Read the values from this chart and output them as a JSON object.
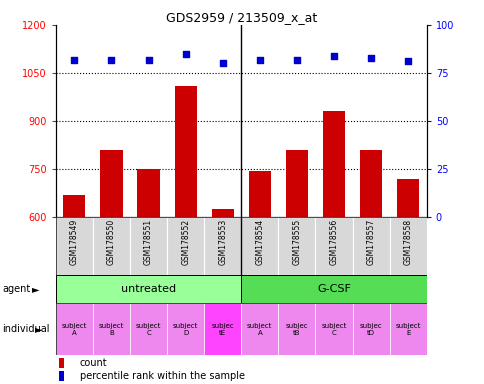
{
  "title": "GDS2959 / 213509_x_at",
  "samples": [
    "GSM178549",
    "GSM178550",
    "GSM178551",
    "GSM178552",
    "GSM178553",
    "GSM178554",
    "GSM178555",
    "GSM178556",
    "GSM178557",
    "GSM178558"
  ],
  "counts": [
    670,
    810,
    750,
    1010,
    625,
    745,
    810,
    930,
    810,
    720
  ],
  "percentile_ranks": [
    82,
    82,
    82,
    85,
    80,
    82,
    82,
    84,
    83,
    81
  ],
  "ylim_left": [
    600,
    1200
  ],
  "yticks_left": [
    600,
    750,
    900,
    1050,
    1200
  ],
  "ylim_right": [
    0,
    100
  ],
  "yticks_right": [
    0,
    25,
    50,
    75,
    100
  ],
  "bar_color": "#cc0000",
  "dot_color": "#0000cc",
  "agent_groups": [
    {
      "label": "untreated",
      "start": 0,
      "end": 5,
      "color": "#99ff99"
    },
    {
      "label": "G-CSF",
      "start": 5,
      "end": 10,
      "color": "#55dd55"
    }
  ],
  "individuals": [
    "subject\nA",
    "subject\nB",
    "subject\nC",
    "subject\nD",
    "subjec\ntE",
    "subject\nA",
    "subjec\ntB",
    "subject\nC",
    "subjec\ntD",
    "subject\nE"
  ],
  "individual_colors": [
    "#ee88ee",
    "#ee88ee",
    "#ee88ee",
    "#ee88ee",
    "#ff44ff",
    "#ee88ee",
    "#ee88ee",
    "#ee88ee",
    "#ee88ee",
    "#ee88ee"
  ],
  "grid_dotted_at": [
    750,
    900,
    1050
  ],
  "bar_width": 0.6,
  "legend_count_color": "#cc0000",
  "legend_dot_color": "#0000cc"
}
